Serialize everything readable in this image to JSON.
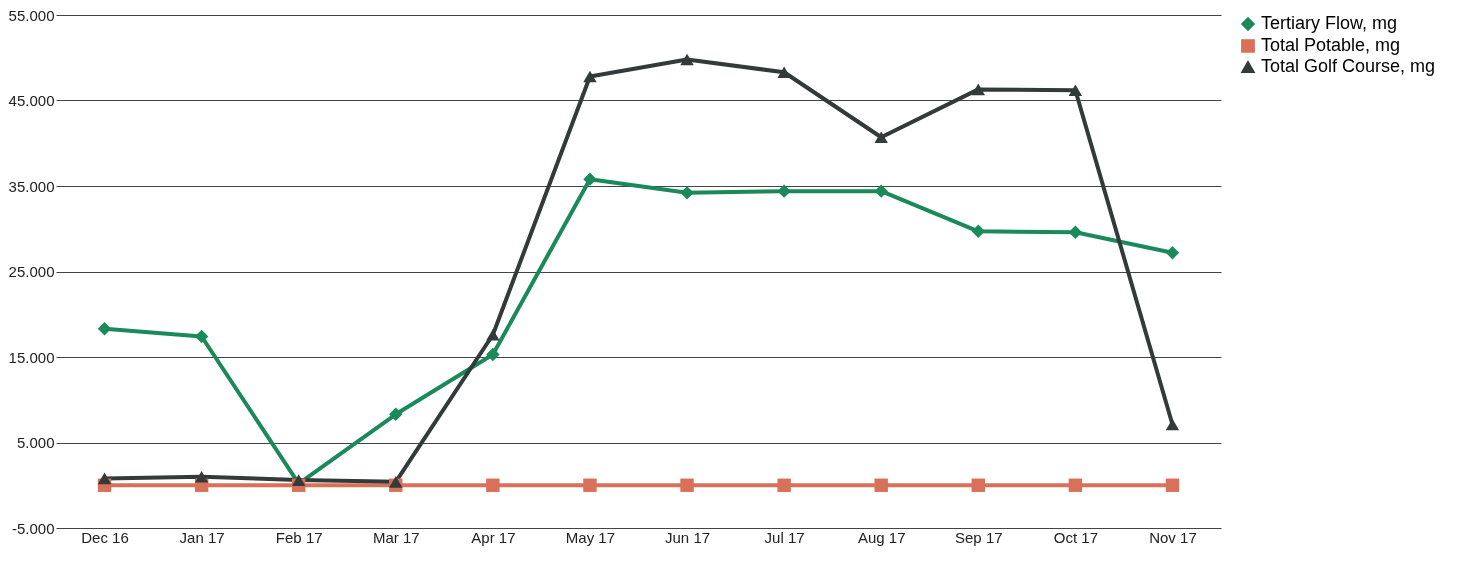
{
  "chart_data": {
    "type": "line",
    "categories": [
      "Dec 16",
      "Jan 17",
      "Feb 17",
      "Mar 17",
      "Apr 17",
      "May 17",
      "Jun 17",
      "Jul 17",
      "Aug 17",
      "Sep 17",
      "Oct 17",
      "Nov 17"
    ],
    "series": [
      {
        "name": "Tertiary Flow, mg",
        "color": "#1a8a5a",
        "marker": "diamond",
        "values": [
          18300,
          17400,
          200,
          8300,
          15300,
          35800,
          34200,
          34400,
          34400,
          29700,
          29600,
          27200
        ]
      },
      {
        "name": "Total Potable, mg",
        "color": "#d9705a",
        "marker": "square",
        "values": [
          0,
          0,
          0,
          0,
          0,
          0,
          0,
          0,
          0,
          0,
          0,
          0
        ]
      },
      {
        "name": "Total Golf Course, mg",
        "color": "#333a3a",
        "marker": "triangle",
        "values": [
          800,
          1000,
          600,
          400,
          17600,
          47800,
          49800,
          48300,
          40700,
          46300,
          46200,
          7100
        ]
      }
    ],
    "ylim": [
      -5000,
      55000
    ],
    "yticks": [
      {
        "value": -5000,
        "label": "-5.000"
      },
      {
        "value": 5000,
        "label": "5.000"
      },
      {
        "value": 15000,
        "label": "15.000"
      },
      {
        "value": 25000,
        "label": "25.000"
      },
      {
        "value": 35000,
        "label": "35.000"
      },
      {
        "value": 45000,
        "label": "45.000"
      },
      {
        "value": 55000,
        "label": "55.000"
      }
    ],
    "grid": "y",
    "legend": "right",
    "line_style": "solid"
  }
}
